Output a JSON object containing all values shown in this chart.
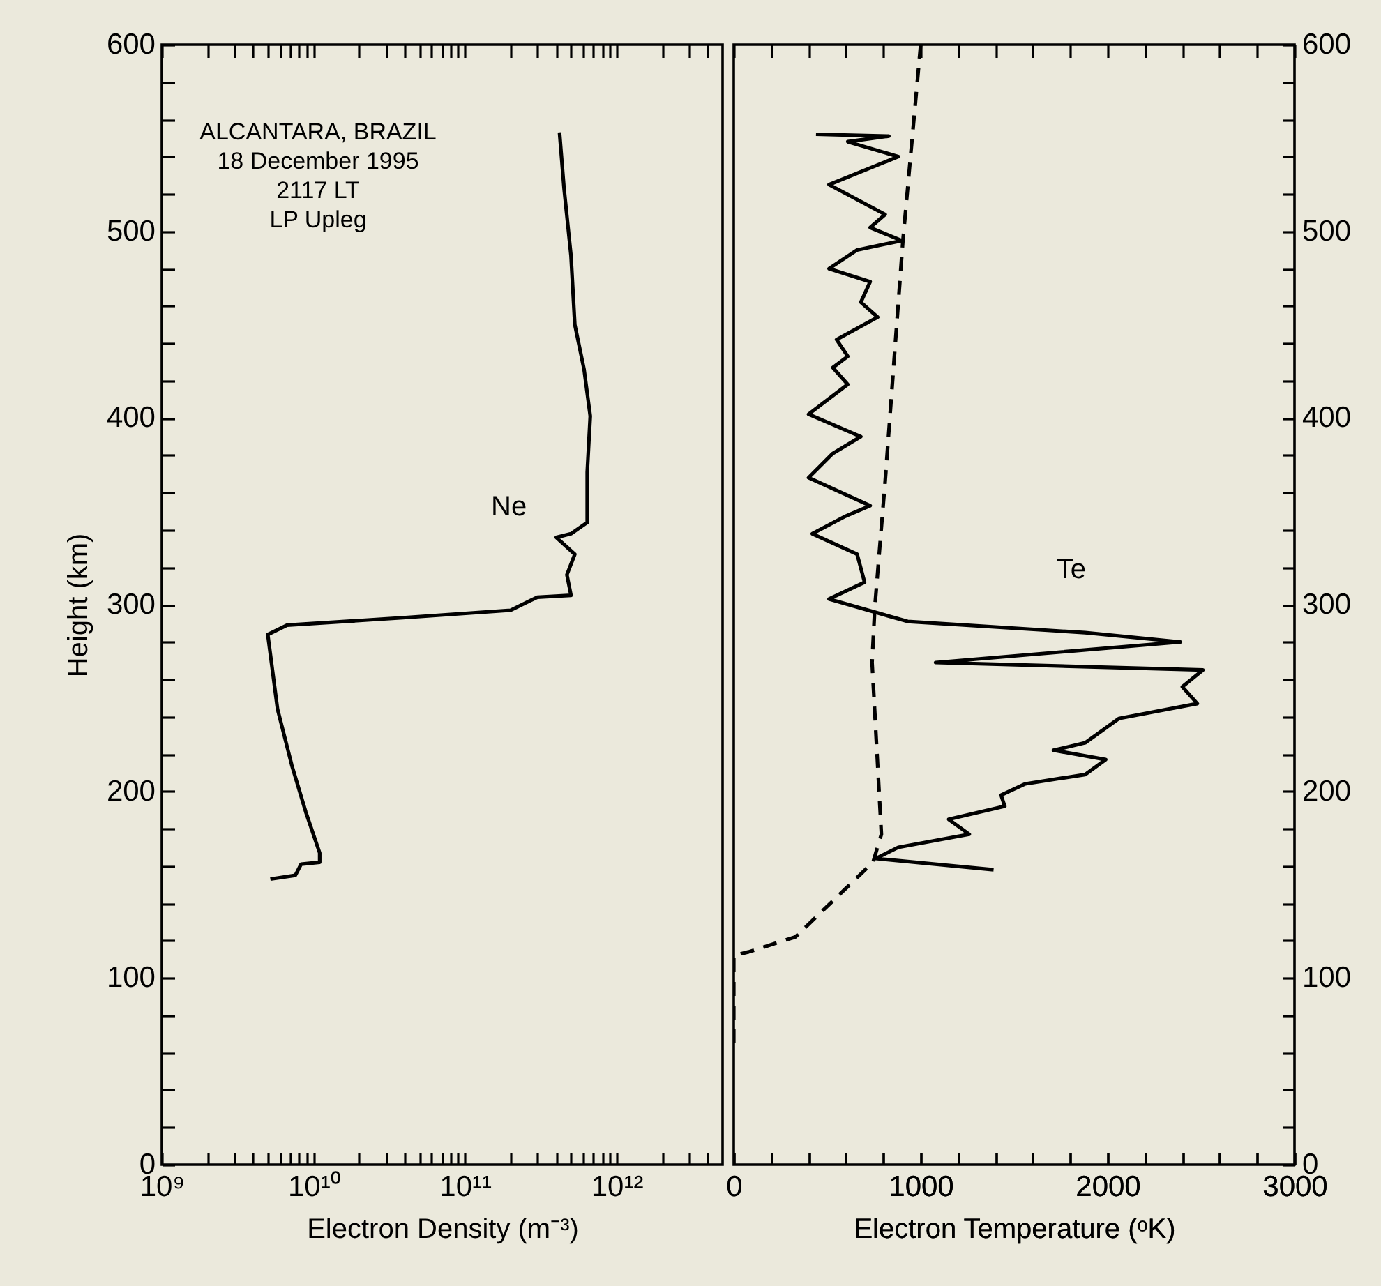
{
  "chart_data": [
    {
      "type": "line",
      "xlabel": "Electron Density (m⁻³)",
      "ylabel": "Height (km)",
      "log": "x",
      "annotations": [
        "ALCANTARA, BRAZIL",
        "18 December 1995",
        "2117 LT",
        "LP Upleg"
      ],
      "xlim": [
        1000000000.0,
        5000000000000.0
      ],
      "xticks": [
        {
          "value": 1000000000.0,
          "label": "10⁹"
        },
        {
          "value": 2000000000.0,
          "label": null
        },
        {
          "value": 3000000000.0,
          "label": null
        },
        {
          "value": 4000000000.0,
          "label": null
        },
        {
          "value": 5000000000.0,
          "label": null
        },
        {
          "value": 6000000000.0,
          "label": null
        },
        {
          "value": 7000000000.0,
          "label": null
        },
        {
          "value": 8000000000.0,
          "label": null
        },
        {
          "value": 9000000000.0,
          "label": null
        },
        {
          "value": 10000000000.0,
          "label": "10¹⁰"
        },
        {
          "value": 20000000000.0,
          "label": null
        },
        {
          "value": 30000000000.0,
          "label": null
        },
        {
          "value": 40000000000.0,
          "label": null
        },
        {
          "value": 50000000000.0,
          "label": null
        },
        {
          "value": 60000000000.0,
          "label": null
        },
        {
          "value": 70000000000.0,
          "label": null
        },
        {
          "value": 80000000000.0,
          "label": null
        },
        {
          "value": 90000000000.0,
          "label": null
        },
        {
          "value": 100000000000.0,
          "label": "10¹¹"
        },
        {
          "value": 200000000000.0,
          "label": null
        },
        {
          "value": 300000000000.0,
          "label": null
        },
        {
          "value": 400000000000.0,
          "label": null
        },
        {
          "value": 500000000000.0,
          "label": null
        },
        {
          "value": 600000000000.0,
          "label": null
        },
        {
          "value": 700000000000.0,
          "label": null
        },
        {
          "value": 800000000000.0,
          "label": null
        },
        {
          "value": 900000000000.0,
          "label": null
        },
        {
          "value": 1000000000000.0,
          "label": "10¹²"
        },
        {
          "value": 2000000000000.0,
          "label": null
        },
        {
          "value": 3000000000000.0,
          "label": null
        },
        {
          "value": 4000000000000.0,
          "label": null
        }
      ],
      "ylim": [
        0,
        600
      ],
      "yticks": [
        0,
        {
          "value": 20,
          "label": null
        },
        {
          "value": 40,
          "label": null
        },
        {
          "value": 60,
          "label": null
        },
        {
          "value": 80,
          "label": null
        },
        100,
        {
          "value": 120,
          "label": null
        },
        {
          "value": 140,
          "label": null
        },
        {
          "value": 160,
          "label": null
        },
        {
          "value": 180,
          "label": null
        },
        200,
        {
          "value": 220,
          "label": null
        },
        {
          "value": 240,
          "label": null
        },
        {
          "value": 260,
          "label": null
        },
        {
          "value": 280,
          "label": null
        },
        300,
        {
          "value": 320,
          "label": null
        },
        {
          "value": 340,
          "label": null
        },
        {
          "value": 360,
          "label": null
        },
        {
          "value": 380,
          "label": null
        },
        400,
        {
          "value": 420,
          "label": null
        },
        {
          "value": 440,
          "label": null
        },
        {
          "value": 460,
          "label": null
        },
        {
          "value": 480,
          "label": null
        },
        500,
        {
          "value": 520,
          "label": null
        },
        {
          "value": 540,
          "label": null
        },
        {
          "value": 560,
          "label": null
        },
        {
          "value": 580,
          "label": null
        },
        600
      ],
      "series": [
        {
          "name": "Ne",
          "color": "#000000",
          "x": [
            420000000000.0,
            450000000000.0,
            500000000000.0,
            530000000000.0,
            610000000000.0,
            670000000000.0,
            640000000000.0,
            640000000000.0,
            500000000000.0,
            400000000000.0,
            530000000000.0,
            470000000000.0,
            500000000000.0,
            300000000000.0,
            200000000000.0,
            39000000000.0,
            6700000000.0,
            5000000000.0,
            5800000000.0,
            7200000000.0,
            8900000000.0,
            11000000000.0,
            11000000000.0,
            8300000000.0,
            7600000000.0,
            5200000000.0
          ],
          "values": [
            553,
            523,
            487,
            450,
            426,
            401,
            371,
            344,
            338,
            336,
            327,
            316,
            305,
            304,
            297,
            293,
            289,
            284,
            244,
            214,
            189,
            167,
            162,
            161,
            155,
            153
          ]
        }
      ]
    },
    {
      "type": "line",
      "xlabel": "Electron Temperature (ᵒK)",
      "xlim": [
        0,
        3000
      ],
      "xticks": [
        0,
        {
          "value": 200,
          "label": null
        },
        {
          "value": 400,
          "label": null
        },
        {
          "value": 600,
          "label": null
        },
        {
          "value": 800,
          "label": null
        },
        1000,
        {
          "value": 1200,
          "label": null
        },
        {
          "value": 1400,
          "label": null
        },
        {
          "value": 1600,
          "label": null
        },
        {
          "value": 1800,
          "label": null
        },
        2000,
        {
          "value": 2200,
          "label": null
        },
        {
          "value": 2400,
          "label": null
        },
        {
          "value": 2600,
          "label": null
        },
        {
          "value": 2800,
          "label": null
        },
        3000
      ],
      "ylim": [
        0,
        600
      ],
      "yticks": [
        0,
        {
          "value": 20,
          "label": null
        },
        {
          "value": 40,
          "label": null
        },
        {
          "value": 60,
          "label": null
        },
        {
          "value": 80,
          "label": null
        },
        100,
        {
          "value": 120,
          "label": null
        },
        {
          "value": 140,
          "label": null
        },
        {
          "value": 160,
          "label": null
        },
        {
          "value": 180,
          "label": null
        },
        200,
        {
          "value": 220,
          "label": null
        },
        {
          "value": 240,
          "label": null
        },
        {
          "value": 260,
          "label": null
        },
        {
          "value": 280,
          "label": null
        },
        300,
        {
          "value": 320,
          "label": null
        },
        {
          "value": 340,
          "label": null
        },
        {
          "value": 360,
          "label": null
        },
        {
          "value": 380,
          "label": null
        },
        400,
        {
          "value": 420,
          "label": null
        },
        {
          "value": 440,
          "label": null
        },
        {
          "value": 460,
          "label": null
        },
        {
          "value": 480,
          "label": null
        },
        500,
        {
          "value": 520,
          "label": null
        },
        {
          "value": 540,
          "label": null
        },
        {
          "value": 560,
          "label": null
        },
        {
          "value": 580,
          "label": null
        },
        600
      ],
      "series": [
        {
          "name": "Te",
          "color": "#000000",
          "x": [
            440,
            830,
            610,
            880,
            510,
            810,
            730,
            900,
            660,
            510,
            730,
            680,
            770,
            550,
            610,
            530,
            610,
            400,
            680,
            530,
            400,
            730,
            590,
            420,
            660,
            700,
            510,
            930,
            1880,
            2390,
            1080,
            2510,
            2400,
            2480,
            2060,
            1880,
            1710,
            1990,
            1880,
            1560,
            1430,
            1450,
            1150,
            1260,
            880,
            760,
            1390
          ],
          "values": [
            552,
            551,
            548,
            540,
            525,
            509,
            502,
            495,
            490,
            480,
            473,
            462,
            454,
            442,
            433,
            427,
            418,
            402,
            390,
            381,
            368,
            353,
            347,
            338,
            327,
            312,
            303,
            291,
            285,
            280,
            269,
            265,
            256,
            247,
            239,
            226,
            222,
            217,
            209,
            204,
            198,
            192,
            185,
            177,
            170,
            164,
            158
          ]
        },
        {
          "color": "#000000",
          "line_style": "dashed",
          "x": [
            1000,
            905,
            810,
            755,
            740,
            790,
            745,
            330,
            80,
            0,
            0
          ],
          "values": [
            600,
            495,
            366,
            299,
            269,
            177,
            162,
            122,
            114,
            112,
            62
          ]
        }
      ]
    }
  ]
}
